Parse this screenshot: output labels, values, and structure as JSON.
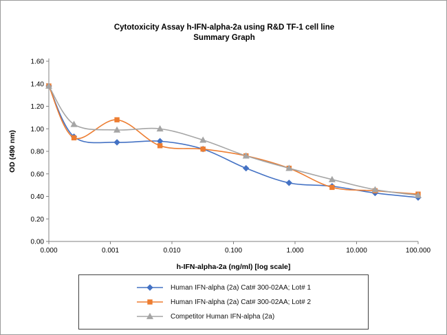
{
  "chart_data": {
    "type": "line",
    "title_line1": "Cytotoxicity Assay h-IFN-alpha-2a using R&D TF-1 cell line",
    "title_line2": "Summary Graph",
    "xlabel": "h-IFN-alpha-2a (ng/ml) [log scale]",
    "ylabel": "OD (490 nm)",
    "ylim": [
      0.0,
      1.6
    ],
    "ytick_step": 0.2,
    "y_tick_labels": [
      "0.00",
      "0.20",
      "0.40",
      "0.60",
      "0.80",
      "1.00",
      "1.20",
      "1.40",
      "1.60"
    ],
    "x_axis_min": 0.0001,
    "x_axis_max": 100,
    "x_tick_positions": [
      0.0001,
      0.001,
      0.01,
      0.1,
      1,
      10,
      100
    ],
    "x_tick_labels": [
      "0.000",
      "0.001",
      "0.010",
      "0.100",
      "1.000",
      "10.000",
      "100.000"
    ],
    "x_values": [
      0,
      0.000256,
      0.00128,
      0.0064,
      0.032,
      0.16,
      0.8,
      4,
      20,
      100
    ],
    "grid": "off",
    "legend_position": "bottom-boxed",
    "axis_color": "#808080",
    "series": [
      {
        "name": "Human IFN-alpha (2a) Cat# 300-02AA; Lot# 1",
        "color": "#4472C4",
        "marker": "diamond",
        "values": [
          1.38,
          0.93,
          0.88,
          0.89,
          0.82,
          0.65,
          0.52,
          0.49,
          0.43,
          0.39
        ]
      },
      {
        "name": "Human IFN-alpha (2a) Cat# 300-02AA; Lot# 2",
        "color": "#ED7D31",
        "marker": "square",
        "values": [
          1.38,
          0.92,
          1.08,
          0.85,
          0.82,
          0.76,
          0.65,
          0.48,
          0.45,
          0.42
        ]
      },
      {
        "name": "Competitor Human IFN-alpha (2a)",
        "color": "#A5A5A5",
        "marker": "triangle",
        "values": [
          1.38,
          1.04,
          0.99,
          1.0,
          0.9,
          0.76,
          0.65,
          0.55,
          0.46,
          0.41
        ]
      }
    ]
  }
}
